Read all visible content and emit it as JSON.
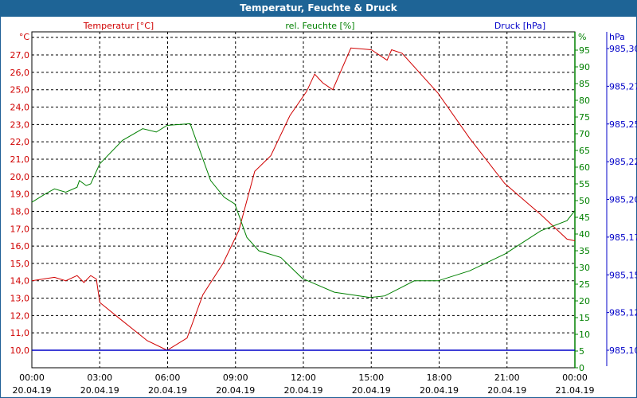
{
  "chart_data": {
    "type": "line",
    "title": "Temperatur, Feuchte & Druck",
    "colors": {
      "temperature": "#d00000",
      "humidity": "#008000",
      "pressure": "#0000c8",
      "title_bar": "#1e6496"
    },
    "axes": {
      "temperature": {
        "label": "Temperatur [°C]",
        "unit": "°C",
        "range": [
          10.0,
          27.0
        ],
        "ticks": [
          "10,0",
          "11,0",
          "12,0",
          "13,0",
          "14,0",
          "15,0",
          "16,0",
          "17,0",
          "18,0",
          "19,0",
          "20,0",
          "21,0",
          "22,0",
          "23,0",
          "24,0",
          "25,0",
          "26,0",
          "27,0"
        ]
      },
      "humidity": {
        "label": "rel. Feuchte [%]",
        "unit": "%",
        "range": [
          0,
          95
        ],
        "ticks": [
          "0",
          "5",
          "10",
          "15",
          "20",
          "25",
          "30",
          "35",
          "40",
          "45",
          "50",
          "55",
          "60",
          "65",
          "70",
          "75",
          "80",
          "85",
          "90",
          "95"
        ]
      },
      "pressure": {
        "label": "Druck [hPa]",
        "unit": "hPa",
        "range": [
          985.1,
          985.3
        ],
        "ticks": [
          "985,10",
          "985,12",
          "985,15",
          "985,17",
          "985,20",
          "985,22",
          "985,25",
          "985,27",
          "985,30"
        ]
      },
      "x": {
        "range_hours": [
          0,
          24
        ],
        "ticks": [
          {
            "time": "00:00",
            "date": "20.04.19"
          },
          {
            "time": "03:00",
            "date": "20.04.19"
          },
          {
            "time": "06:00",
            "date": "20.04.19"
          },
          {
            "time": "09:00",
            "date": "20.04.19"
          },
          {
            "time": "12:00",
            "date": "20.04.19"
          },
          {
            "time": "15:00",
            "date": "20.04.19"
          },
          {
            "time": "18:00",
            "date": "20.04.19"
          },
          {
            "time": "21:00",
            "date": "20.04.19"
          },
          {
            "time": "00:00",
            "date": "21.04.19"
          }
        ]
      }
    },
    "series": [
      {
        "name": "Temperatur",
        "axis": "temperature",
        "points": [
          [
            0,
            14.0
          ],
          [
            0.5,
            14.1
          ],
          [
            1.0,
            14.2
          ],
          [
            1.5,
            14.0
          ],
          [
            2.0,
            14.3
          ],
          [
            2.3,
            13.9
          ],
          [
            2.6,
            14.3
          ],
          [
            2.85,
            14.1
          ],
          [
            3.0,
            12.75
          ],
          [
            3.9,
            11.8
          ],
          [
            5.1,
            10.55
          ],
          [
            5.98,
            10.0
          ],
          [
            6.86,
            10.7
          ],
          [
            7.56,
            13.2
          ],
          [
            8.45,
            15.0
          ],
          [
            9.15,
            16.9
          ],
          [
            9.85,
            20.3
          ],
          [
            10.56,
            21.2
          ],
          [
            11.4,
            23.5
          ],
          [
            12.14,
            24.9
          ],
          [
            12.5,
            25.9
          ],
          [
            12.85,
            25.4
          ],
          [
            13.3,
            25.0
          ],
          [
            14.1,
            27.4
          ],
          [
            15.0,
            27.3
          ],
          [
            15.7,
            26.7
          ],
          [
            15.9,
            27.3
          ],
          [
            16.36,
            27.1
          ],
          [
            17.95,
            24.8
          ],
          [
            19.35,
            22.2
          ],
          [
            20.9,
            19.6
          ],
          [
            22.5,
            17.8
          ],
          [
            23.65,
            16.4
          ],
          [
            24,
            16.3
          ]
        ]
      },
      {
        "name": "rel. Feuchte",
        "axis": "humidity",
        "points": [
          [
            0,
            49.5
          ],
          [
            0.6,
            52
          ],
          [
            1.0,
            53.5
          ],
          [
            1.5,
            52.5
          ],
          [
            2.0,
            54
          ],
          [
            2.1,
            56
          ],
          [
            2.4,
            54.5
          ],
          [
            2.6,
            55
          ],
          [
            3.0,
            61
          ],
          [
            4.0,
            68
          ],
          [
            4.9,
            71.5
          ],
          [
            5.5,
            70.5
          ],
          [
            5.98,
            72.5
          ],
          [
            7.0,
            73
          ],
          [
            7.9,
            56
          ],
          [
            8.5,
            51
          ],
          [
            8.97,
            49
          ],
          [
            9.5,
            39
          ],
          [
            10.03,
            35
          ],
          [
            11.0,
            33
          ],
          [
            11.96,
            26.7
          ],
          [
            13.37,
            22.6
          ],
          [
            14.95,
            21
          ],
          [
            15.6,
            21.5
          ],
          [
            16.9,
            26
          ],
          [
            17.95,
            26
          ],
          [
            19.35,
            29
          ],
          [
            20.9,
            34
          ],
          [
            22.5,
            41
          ],
          [
            23.65,
            44
          ],
          [
            24,
            47
          ]
        ]
      },
      {
        "name": "Druck",
        "axis": "pressure",
        "points": [
          [
            0,
            985.1
          ],
          [
            24,
            985.1
          ]
        ]
      }
    ]
  }
}
